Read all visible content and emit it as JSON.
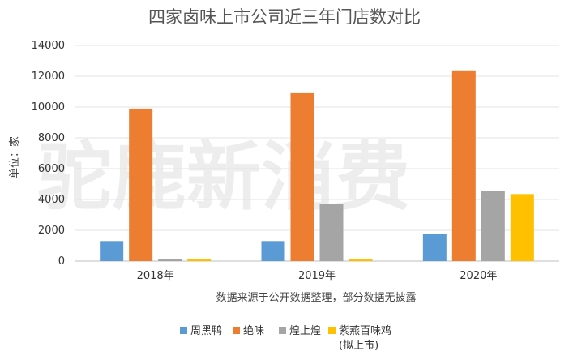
{
  "chart_data": {
    "type": "bar",
    "title": "四家卤味上市公司近三年门店数对比",
    "ylabel": "单位：家",
    "xlabel": "数据来源于公开数据整理，部分数据无披露",
    "categories": [
      "2018年",
      "2019年",
      "2020年"
    ],
    "ylim": [
      0,
      14000
    ],
    "yticks": [
      0,
      2000,
      4000,
      6000,
      8000,
      10000,
      12000,
      14000
    ],
    "grid": true,
    "legend_position": "bottom",
    "series": [
      {
        "name": "周黑鸭",
        "color": "#5b9bd5",
        "values": [
          1300,
          1300,
          1760
        ]
      },
      {
        "name": "绝味",
        "color": "#ed7d31",
        "values": [
          9900,
          10900,
          12380
        ]
      },
      {
        "name": "煌上煌",
        "color": "#a5a5a5",
        "values": [
          120,
          3700,
          4580
        ]
      },
      {
        "name": "紫燕百味鸡",
        "name_note": "(拟上市)",
        "color": "#ffc000",
        "values": [
          120,
          120,
          4350
        ]
      }
    ],
    "watermark": "驼鹿新消费"
  }
}
